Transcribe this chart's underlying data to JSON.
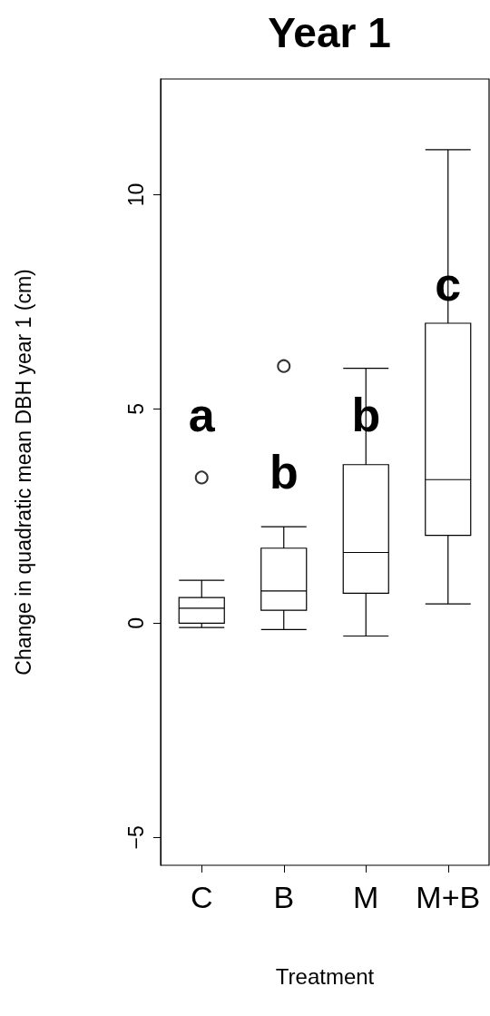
{
  "chart_data": {
    "type": "box",
    "title": "Year 1",
    "xlabel": "Treatment",
    "ylabel": "Change in quadratic mean DBH year 1 (cm)",
    "categories": [
      "C",
      "B",
      "M",
      "M+B"
    ],
    "boxes": [
      {
        "low": -0.1,
        "q1": 0,
        "median": 0.35,
        "q3": 0.6,
        "high": 1.0,
        "outliers": [
          3.4
        ]
      },
      {
        "low": -0.15,
        "q1": 0.3,
        "median": 0.75,
        "q3": 1.75,
        "high": 2.25,
        "outliers": [
          6.0
        ]
      },
      {
        "low": -0.3,
        "q1": 0.7,
        "median": 1.65,
        "q3": 3.7,
        "high": 5.95
      },
      {
        "low": 0.45,
        "q1": 2.05,
        "median": 3.35,
        "q3": 7.0,
        "high": 11.05
      }
    ],
    "ylim": [
      -5.65,
      12.7
    ],
    "yticks": [
      -5,
      0,
      5,
      10
    ],
    "annotations": [
      "a",
      "b",
      "b",
      "c"
    ]
  }
}
